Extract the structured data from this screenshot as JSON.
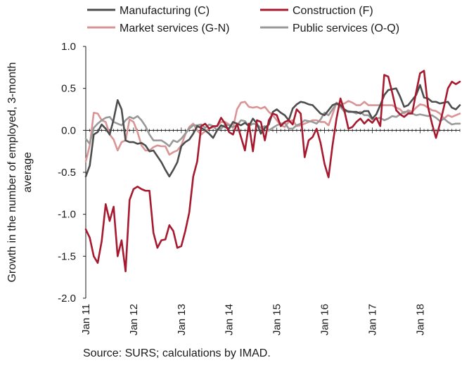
{
  "chart_data": {
    "type": "line",
    "title": "",
    "xlabel": "",
    "ylabel": "Growth in the number of employed, 3-month average",
    "ylabel_lines": [
      "Growth in the number of employed, 3-month",
      "average"
    ],
    "ylim": [
      -2.0,
      1.0
    ],
    "yticks": [
      -2.0,
      -1.5,
      -1.0,
      -0.5,
      0.0,
      0.5,
      1.0
    ],
    "ytick_labels": [
      "-2.0",
      "-1.5",
      "-1.0",
      "-0.5",
      "0.0",
      "0.5",
      "1.0"
    ],
    "x_tick_labels": [
      "Jan 11",
      "Jan 12",
      "Jan 13",
      "Jan 14",
      "Jan 15",
      "Jan 16",
      "Jan 17",
      "Jan 18"
    ],
    "x_start": "Jan 11",
    "x_end": "Sep 18",
    "zero_line": true,
    "grid": false,
    "legend_position": "top",
    "source": "Source: SURS; calculations by IMAD.",
    "series": [
      {
        "name": "Manufacturing (C)",
        "color": "#4d4d4d",
        "values": [
          -0.55,
          -0.42,
          -0.05,
          -0.02,
          0.07,
          0.02,
          -0.05,
          0.13,
          0.36,
          0.25,
          -0.12,
          -0.14,
          -0.14,
          -0.16,
          -0.15,
          -0.18,
          -0.25,
          -0.24,
          -0.31,
          -0.38,
          -0.47,
          -0.55,
          -0.47,
          -0.38,
          -0.19,
          -0.14,
          -0.11,
          -0.04,
          0.05,
          0.03,
          0.0,
          -0.04,
          -0.09,
          0.0,
          0.06,
          0.04,
          0.02,
          0.1,
          0.08,
          0.06,
          0.09,
          0.05,
          0.14,
          0.08,
          -0.04,
          0.03,
          0.07,
          0.22,
          0.25,
          0.21,
          0.18,
          0.12,
          0.26,
          0.31,
          0.34,
          0.33,
          0.31,
          0.3,
          0.25,
          0.2,
          0.18,
          0.24,
          0.3,
          0.32,
          0.3,
          0.25,
          0.22,
          0.22,
          0.22,
          0.2,
          0.23,
          0.23,
          0.14,
          0.19,
          0.3,
          0.42,
          0.48,
          0.49,
          0.5,
          0.4,
          0.28,
          0.3,
          0.36,
          0.42,
          0.54,
          0.39,
          0.38,
          0.34,
          0.34,
          0.32,
          0.33,
          0.34,
          0.27,
          0.25,
          0.3
        ]
      },
      {
        "name": "Construction (F)",
        "color": "#a6192e",
        "values": [
          -1.18,
          -1.28,
          -1.5,
          -1.58,
          -1.32,
          -0.88,
          -1.08,
          -0.91,
          -1.5,
          -1.31,
          -1.68,
          -0.83,
          -0.7,
          -0.67,
          -0.7,
          -0.72,
          -0.72,
          -1.22,
          -1.4,
          -1.31,
          -1.3,
          -1.13,
          -1.2,
          -1.4,
          -1.38,
          -1.2,
          -0.98,
          -0.55,
          -0.37,
          0.05,
          0.08,
          0.02,
          0.05,
          0.05,
          0.15,
          0.08,
          -0.02,
          -0.05,
          0.08,
          -0.08,
          -0.24,
          0.08,
          -0.25,
          0.12,
          0.1,
          -0.12,
          0.12,
          0.2,
          0.18,
          0.05,
          0.1,
          0.12,
          0.07,
          0.25,
          0.2,
          -0.32,
          -0.12,
          -0.08,
          0.02,
          -0.15,
          -0.4,
          -0.56,
          -0.18,
          0.14,
          0.38,
          0.23,
          0.02,
          0.04,
          0.1,
          0.14,
          0.08,
          0.13,
          0.09,
          0.15,
          0.05,
          0.66,
          0.64,
          0.45,
          0.24,
          0.19,
          0.16,
          0.2,
          0.2,
          0.45,
          0.68,
          0.71,
          0.28,
          0.08,
          -0.09,
          0.08,
          0.28,
          0.5,
          0.58,
          0.55,
          0.58
        ]
      },
      {
        "name": "Market services (G-N)",
        "color": "#d99595",
        "values": [
          -0.37,
          -0.18,
          0.21,
          0.2,
          0.12,
          0.1,
          -0.05,
          -0.11,
          -0.24,
          -0.14,
          -0.12,
          0.13,
          0.1,
          -0.02,
          -0.18,
          -0.24,
          -0.24,
          -0.2,
          -0.18,
          -0.19,
          -0.19,
          -0.29,
          -0.26,
          -0.24,
          -0.18,
          -0.05,
          0.04,
          0.08,
          0.0,
          -0.05,
          -0.01,
          0.02,
          0.04,
          0.05,
          0.1,
          0.1,
          0.07,
          0.03,
          0.25,
          0.33,
          0.34,
          0.28,
          0.27,
          0.28,
          0.26,
          0.28,
          0.22,
          0.18,
          0.12,
          0.06,
          0.04,
          0.1,
          0.12,
          0.05,
          0.06,
          0.08,
          0.1,
          0.12,
          0.12,
          0.1,
          0.1,
          0.06,
          0.19,
          0.33,
          0.31,
          0.32,
          0.35,
          0.33,
          0.3,
          0.3,
          0.34,
          0.3,
          0.3,
          0.3,
          0.3,
          0.3,
          0.3,
          0.3,
          0.27,
          0.25,
          0.2,
          0.24,
          0.22,
          0.27,
          0.31,
          0.3,
          0.27,
          0.24,
          0.23,
          0.2,
          0.14,
          0.18,
          0.16,
          0.18,
          0.2
        ]
      },
      {
        "name": "Public services (O-Q)",
        "color": "#999999",
        "values": [
          -0.1,
          -0.16,
          0.03,
          0.08,
          0.12,
          0.15,
          0.16,
          0.1,
          0.08,
          0.06,
          0.12,
          0.16,
          0.14,
          0.17,
          0.12,
          0.05,
          -0.05,
          -0.12,
          -0.12,
          -0.12,
          -0.15,
          -0.19,
          -0.12,
          -0.14,
          -0.1,
          -0.04,
          0.02,
          0.06,
          0.06,
          0.07,
          0.03,
          0.07,
          0.05,
          0.0,
          0.02,
          0.07,
          0.06,
          0.04,
          0.06,
          0.12,
          0.11,
          0.05,
          0.08,
          0.07,
          0.03,
          0.05,
          0.0,
          0.03,
          0.06,
          0.08,
          0.09,
          0.02,
          0.02,
          0.06,
          0.08,
          0.12,
          0.11,
          0.1,
          0.08,
          0.13,
          0.21,
          0.18,
          0.25,
          0.32,
          0.28,
          0.22,
          0.23,
          0.22,
          0.2,
          0.22,
          0.18,
          0.18,
          0.13,
          0.14,
          0.15,
          0.12,
          0.14,
          0.17,
          0.16,
          0.19,
          0.22,
          0.22,
          0.2,
          0.18,
          0.19,
          0.18,
          0.17,
          0.18,
          0.15,
          0.11,
          0.14,
          0.1,
          0.07,
          0.08,
          0.08
        ]
      }
    ]
  }
}
